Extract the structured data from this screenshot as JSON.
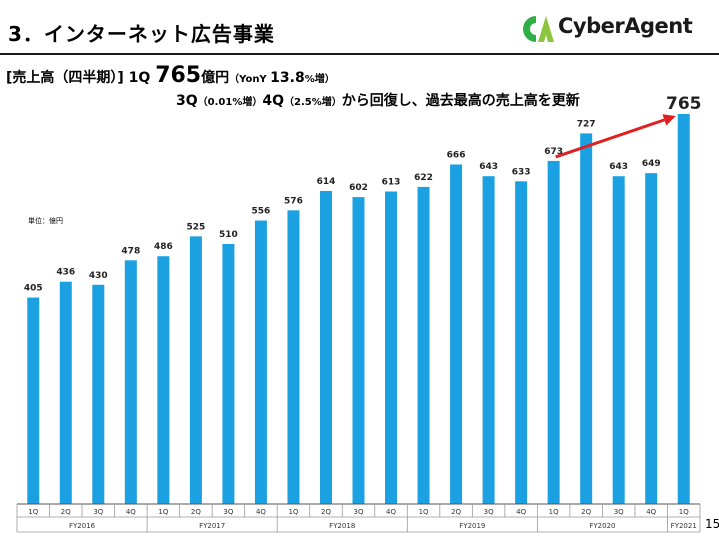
{
  "slide": {
    "title": "3．インターネット広告事業",
    "page_number": "15"
  },
  "logo": {
    "text": "CyberAgent",
    "mark_colors": [
      "#2fae4a",
      "#8cc63f"
    ]
  },
  "headline": {
    "prefix": "[売上高（四半期）] 1Q ",
    "value": "765",
    "unit": "億円",
    "yoy_label": "（YonY ",
    "yoy_value": "13.8",
    "yoy_suffix": "%増）",
    "line2_part1": "3Q",
    "line2_part2": "（0.01%増）",
    "line2_part3": "4Q",
    "line2_part4": "（2.5%増）",
    "line2_part5": "から回復し、過去最高の売上高を更新"
  },
  "colors": {
    "bar": "#1ba1e2",
    "arrow": "#e02020",
    "axis": "#555555"
  },
  "chart_data": {
    "type": "bar",
    "unit_label": "単位：億円",
    "categories": [
      "1Q",
      "2Q",
      "3Q",
      "4Q",
      "1Q",
      "2Q",
      "3Q",
      "4Q",
      "1Q",
      "2Q",
      "3Q",
      "4Q",
      "1Q",
      "2Q",
      "3Q",
      "4Q",
      "1Q",
      "2Q",
      "3Q",
      "4Q",
      "1Q"
    ],
    "fiscal_years": [
      {
        "label": "FY2016",
        "count": 4
      },
      {
        "label": "FY2017",
        "count": 4
      },
      {
        "label": "FY2018",
        "count": 4
      },
      {
        "label": "FY2019",
        "count": 4
      },
      {
        "label": "FY2020",
        "count": 4
      },
      {
        "label": "FY2021",
        "count": 1
      }
    ],
    "values": [
      405,
      436,
      430,
      478,
      486,
      525,
      510,
      556,
      576,
      614,
      602,
      613,
      622,
      666,
      643,
      633,
      673,
      727,
      643,
      649,
      765
    ],
    "data_labels": [
      "405",
      "436",
      "430",
      "478",
      "486",
      "525",
      "510",
      "556",
      "576",
      "614",
      "602",
      "613",
      "622",
      "666",
      "643",
      "633",
      "673",
      "727",
      "643",
      "649",
      "765"
    ],
    "highlight_index": 20,
    "arrow": {
      "from_index": 16,
      "to_index": 20
    },
    "ylim": [
      0,
      765
    ],
    "grid": false
  }
}
